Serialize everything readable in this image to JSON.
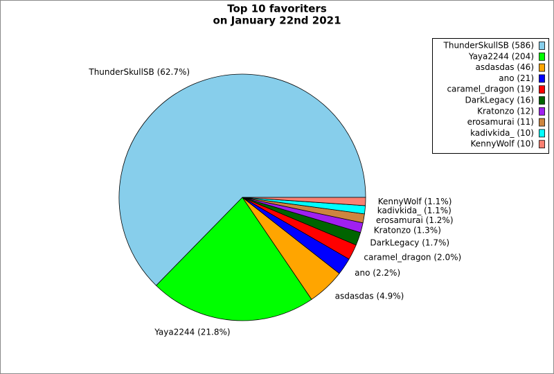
{
  "chart_data": {
    "type": "pie",
    "title": [
      "Top 10 favoriters",
      "on January 22nd 2021"
    ],
    "categories": [
      "ThunderSkullSB",
      "Yaya2244",
      "asdasdas",
      "ano",
      "caramel_dragon",
      "DarkLegacy",
      "Kratonzo",
      "erosamurai",
      "kadivkida_",
      "KennyWolf"
    ],
    "values": [
      586,
      204,
      46,
      21,
      19,
      16,
      12,
      11,
      10,
      10
    ],
    "value_labels": [
      "ThunderSkullSB (586)",
      "Yaya2244 (204)",
      "asdasdas (46)",
      "ano (21)",
      "caramel_dragon (19)",
      "DarkLegacy (16)",
      "Kratonzo (12)",
      "erosamurai (11)",
      "kadivkida_ (10)",
      "KennyWolf (10)"
    ],
    "slice_labels": [
      "ThunderSkullSB (62.7%)",
      "Yaya2244 (21.8%)",
      "asdasdas (4.9%)",
      "ano (2.2%)",
      "caramel_dragon (2.0%)",
      "DarkLegacy (1.7%)",
      "Kratonzo (1.3%)",
      "erosamurai (1.2%)",
      "kadivkida_ (1.1%)",
      "KennyWolf (1.1%)"
    ],
    "colors": [
      "#87ceeb",
      "#00ff00",
      "#ffa500",
      "#0000ff",
      "#ff0000",
      "#006400",
      "#a020f0",
      "#cd853f",
      "#00ffff",
      "#fa8072"
    ],
    "legend": "upper right"
  }
}
